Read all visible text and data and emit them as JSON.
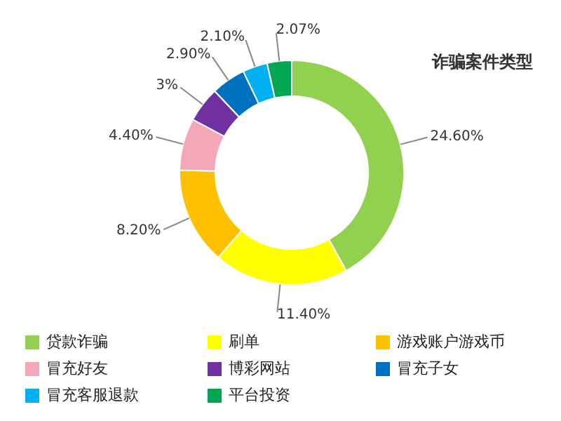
{
  "chart_data": {
    "type": "donut",
    "title": "诈骗案件类型",
    "categories": [
      "贷款诈骗",
      "刷单",
      "游戏账户游戏币",
      "冒充好友",
      "博彩网站",
      "冒充子女",
      "冒充客服退款",
      "平台投资"
    ],
    "values": [
      24.6,
      11.4,
      8.2,
      4.4,
      3,
      2.9,
      2.1,
      2.07
    ],
    "value_labels": [
      "24.60%",
      "11.40%",
      "8.20%",
      "4.40%",
      "3%",
      "2.90%",
      "2.10%",
      "2.07%"
    ],
    "colors": [
      "#92d050",
      "#ffff00",
      "#ffc000",
      "#f4a7b9",
      "#7030a0",
      "#0070c0",
      "#00b0f0",
      "#00a651"
    ],
    "legend": "bottom"
  }
}
